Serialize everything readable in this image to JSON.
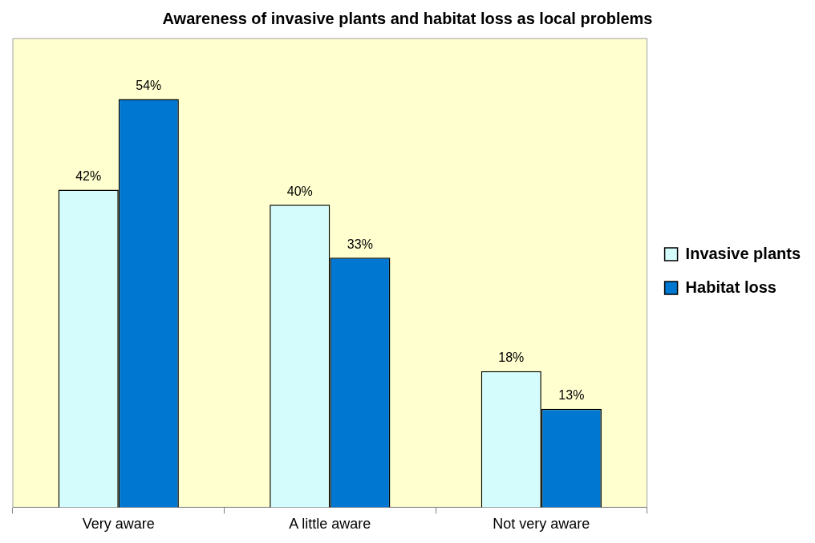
{
  "chart_data": {
    "type": "bar",
    "title": "Awareness of invasive plants and habitat loss as local problems",
    "categories": [
      "Very aware",
      "A little aware",
      "Not very aware"
    ],
    "series": [
      {
        "name": "Invasive plants",
        "color": "#d4fcfc",
        "values": [
          42,
          40,
          18
        ],
        "value_labels": [
          "42%",
          "40%",
          "18%"
        ]
      },
      {
        "name": "Habitat loss",
        "color": "#0077d0",
        "values": [
          54,
          33,
          13
        ],
        "value_labels": [
          "54%",
          "33%",
          "13%"
        ]
      }
    ],
    "ylim": [
      0,
      62
    ],
    "tick_labels": "x",
    "legend": "right"
  }
}
